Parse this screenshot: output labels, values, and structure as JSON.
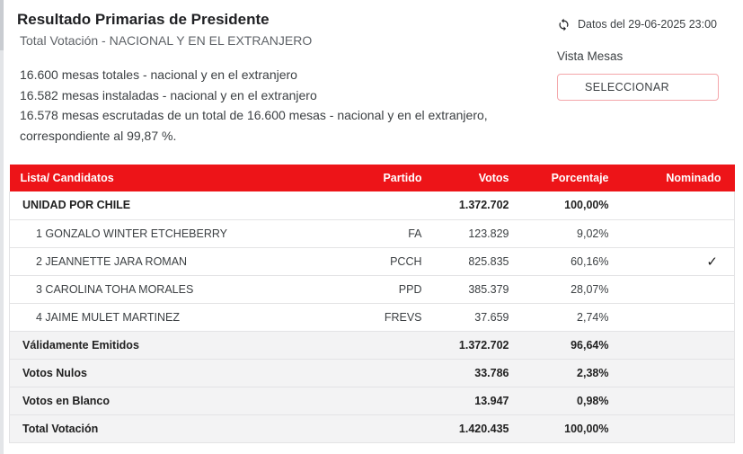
{
  "header": {
    "title": "Resultado Primarias de Presidente",
    "subtitle": "Total Votación - NACIONAL Y EN EL EXTRANJERO",
    "info_lines": [
      "16.600 mesas totales - nacional y en el extranjero",
      "16.582 mesas instaladas - nacional y en el extranjero",
      "16.578 mesas escrutadas de un total de 16.600 mesas - nacional y en el extranjero, correspondiente al 99,87 %."
    ]
  },
  "toolbar": {
    "refresh_icon": "refresh-icon",
    "data_timestamp": "Datos del 29-06-2025 23:00",
    "view_label": "Vista Mesas",
    "select_button_label": "SELECCIONAR"
  },
  "table": {
    "columns": {
      "name": "Lista/ Candidatos",
      "partido": "Partido",
      "votos": "Votos",
      "porcentaje": "Porcentaje",
      "nominado": "Nominado"
    },
    "nominated_glyph": "✓",
    "rows": [
      {
        "type": "group",
        "name": "UNIDAD POR CHILE",
        "partido": "",
        "votos": "1.372.702",
        "porcentaje": "100,00%",
        "nominado": false
      },
      {
        "type": "candidate",
        "name": "1 GONZALO WINTER ETCHEBERRY",
        "partido": "FA",
        "votos": "123.829",
        "porcentaje": "9,02%",
        "nominado": false
      },
      {
        "type": "candidate",
        "name": "2 JEANNETTE JARA ROMAN",
        "partido": "PCCH",
        "votos": "825.835",
        "porcentaje": "60,16%",
        "nominado": true
      },
      {
        "type": "candidate",
        "name": "3 CAROLINA TOHA MORALES",
        "partido": "PPD",
        "votos": "385.379",
        "porcentaje": "28,07%",
        "nominado": false
      },
      {
        "type": "candidate",
        "name": "4 JAIME MULET MARTINEZ",
        "partido": "FREVS",
        "votos": "37.659",
        "porcentaje": "2,74%",
        "nominado": false
      },
      {
        "type": "summary",
        "name": "Válidamente Emitidos",
        "partido": "",
        "votos": "1.372.702",
        "porcentaje": "96,64%",
        "nominado": false
      },
      {
        "type": "summary",
        "name": "Votos Nulos",
        "partido": "",
        "votos": "33.786",
        "porcentaje": "2,38%",
        "nominado": false
      },
      {
        "type": "summary",
        "name": "Votos en Blanco",
        "partido": "",
        "votos": "13.947",
        "porcentaje": "0,98%",
        "nominado": false
      },
      {
        "type": "summary",
        "name": "Total Votación",
        "partido": "",
        "votos": "1.420.435",
        "porcentaje": "100,00%",
        "nominado": false
      }
    ]
  },
  "colors": {
    "header_red": "#ed1418",
    "summary_row_bg": "#f3f3f4",
    "row_border": "#e3e3e5",
    "select_button_border": "#f4a6aa",
    "check_color": "#1b1b1b"
  }
}
